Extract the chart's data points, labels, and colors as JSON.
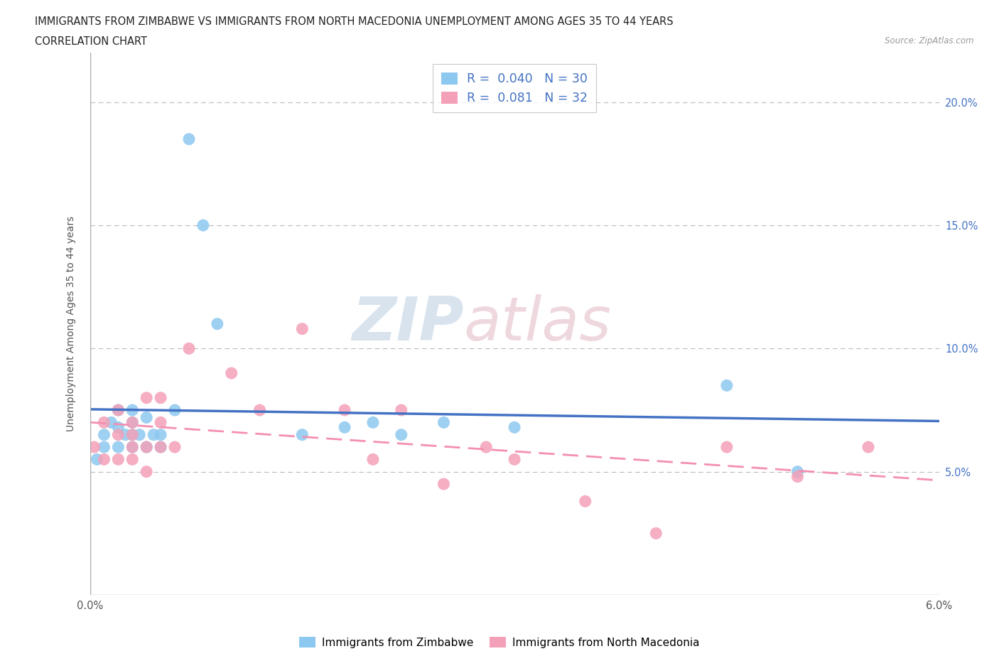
{
  "title_line1": "IMMIGRANTS FROM ZIMBABWE VS IMMIGRANTS FROM NORTH MACEDONIA UNEMPLOYMENT AMONG AGES 35 TO 44 YEARS",
  "title_line2": "CORRELATION CHART",
  "source": "Source: ZipAtlas.com",
  "ylabel": "Unemployment Among Ages 35 to 44 years",
  "xlim": [
    0.0,
    0.06
  ],
  "ylim": [
    0.0,
    0.22
  ],
  "x_ticks": [
    0.0,
    0.01,
    0.02,
    0.03,
    0.04,
    0.05,
    0.06
  ],
  "x_tick_labels": [
    "0.0%",
    "",
    "",
    "",
    "",
    "",
    "6.0%"
  ],
  "y_ticks": [
    0.0,
    0.05,
    0.1,
    0.15,
    0.2
  ],
  "y_tick_labels_left": [
    "",
    "",
    "",
    "",
    ""
  ],
  "y_tick_labels_right": [
    "",
    "5.0%",
    "10.0%",
    "15.0%",
    "20.0%"
  ],
  "color_zimbabwe": "#8DC8F0",
  "color_macedonia": "#F4A0B8",
  "color_line_zimbabwe": "#4472C4",
  "color_line_macedonia": "#F48FB1",
  "legend_r1": "0.040",
  "legend_n1": "30",
  "legend_r2": "0.081",
  "legend_n2": "32",
  "label1": "Immigrants from Zimbabwe",
  "label2": "Immigrants from North Macedonia",
  "watermark_zip": "ZIP",
  "watermark_atlas": "atlas",
  "grid_color": "#BBBBBB",
  "background_color": "#FFFFFF",
  "zimbabwe_x": [
    0.0005,
    0.001,
    0.001,
    0.0015,
    0.002,
    0.002,
    0.002,
    0.0025,
    0.003,
    0.003,
    0.003,
    0.003,
    0.0035,
    0.004,
    0.004,
    0.0045,
    0.005,
    0.005,
    0.006,
    0.007,
    0.008,
    0.009,
    0.015,
    0.018,
    0.02,
    0.022,
    0.025,
    0.03,
    0.045,
    0.05
  ],
  "zimbabwe_y": [
    0.055,
    0.06,
    0.065,
    0.07,
    0.06,
    0.068,
    0.075,
    0.065,
    0.06,
    0.065,
    0.07,
    0.075,
    0.065,
    0.06,
    0.072,
    0.065,
    0.06,
    0.065,
    0.075,
    0.185,
    0.15,
    0.11,
    0.065,
    0.068,
    0.07,
    0.065,
    0.07,
    0.068,
    0.085,
    0.05
  ],
  "macedonia_x": [
    0.0003,
    0.001,
    0.001,
    0.002,
    0.002,
    0.002,
    0.003,
    0.003,
    0.003,
    0.003,
    0.004,
    0.004,
    0.004,
    0.005,
    0.005,
    0.005,
    0.006,
    0.007,
    0.01,
    0.012,
    0.015,
    0.018,
    0.02,
    0.022,
    0.025,
    0.028,
    0.03,
    0.035,
    0.04,
    0.045,
    0.05,
    0.055
  ],
  "macedonia_y": [
    0.06,
    0.055,
    0.07,
    0.055,
    0.065,
    0.075,
    0.055,
    0.06,
    0.065,
    0.07,
    0.05,
    0.06,
    0.08,
    0.06,
    0.07,
    0.08,
    0.06,
    0.1,
    0.09,
    0.075,
    0.108,
    0.075,
    0.055,
    0.075,
    0.045,
    0.06,
    0.055,
    0.038,
    0.025,
    0.06,
    0.048,
    0.06
  ]
}
